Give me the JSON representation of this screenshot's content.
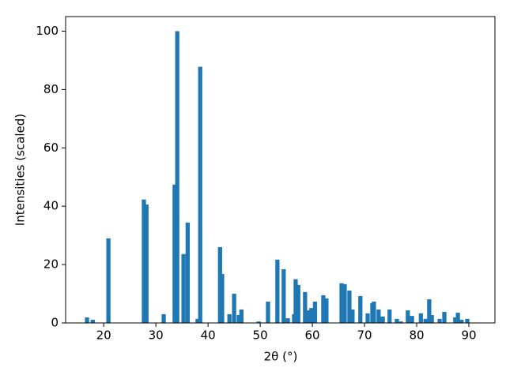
{
  "chart_data": {
    "type": "bar",
    "xlabel": "2θ (°)",
    "ylabel": "Intensities (scaled)",
    "color": "#1f77b4",
    "x": [
      16.8,
      17.9,
      20.9,
      27.7,
      28.2,
      31.5,
      33.6,
      34.1,
      35.3,
      36.1,
      38.0,
      38.5,
      42.3,
      42.7,
      44.1,
      45.0,
      45.9,
      46.4,
      49.7,
      51.5,
      53.3,
      54.5,
      55.3,
      56.5,
      56.8,
      57.3,
      58.6,
      59.1,
      59.8,
      60.5,
      62.1,
      62.7,
      65.6,
      66.2,
      67.1,
      67.7,
      69.2,
      70.6,
      71.5,
      71.8,
      72.7,
      73.5,
      74.8,
      76.2,
      77.0,
      78.3,
      79.1,
      80.8,
      81.7,
      82.4,
      82.9,
      84.4,
      85.3,
      87.4,
      87.9,
      88.6,
      89.7
    ],
    "values": [
      1.9,
      1.1,
      29,
      42.3,
      40.6,
      3.0,
      47.4,
      100,
      23.6,
      34.4,
      1.4,
      87.8,
      26,
      16.8,
      3,
      10,
      2.7,
      4.6,
      0.5,
      7.3,
      21.7,
      18.4,
      1.6,
      3,
      15,
      13,
      10.6,
      4.3,
      5.1,
      7.3,
      9.5,
      8.4,
      13.6,
      13.3,
      11.1,
      4.6,
      9.2,
      3.3,
      6.8,
      7.3,
      4.6,
      2.2,
      4.6,
      1.4,
      0.5,
      4.3,
      2.4,
      3.3,
      1.4,
      8.1,
      2.7,
      1.4,
      3.8,
      1.9,
      3.5,
      1.1,
      1.4
    ],
    "xlim": [
      12.7,
      95.0
    ],
    "ylim": [
      0,
      105
    ],
    "xticks": [
      20,
      30,
      40,
      50,
      60,
      70,
      80,
      90
    ],
    "yticks": [
      0,
      20,
      40,
      60,
      80,
      100
    ]
  }
}
